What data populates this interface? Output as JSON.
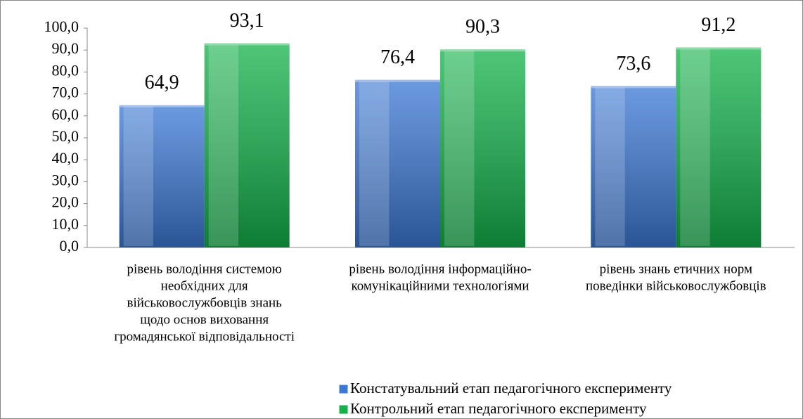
{
  "chart_data": {
    "type": "bar",
    "categories": [
      [
        "рівень володіння системою",
        "необхідних для",
        "військовослужбовців знань",
        "щодо основ виховання",
        "громадянської відповідальності"
      ],
      [
        "рівень володіння інформаційно-",
        "комунікаційними технологіями"
      ],
      [
        "рівень знань етичних норм",
        "поведінки військовослужбовців"
      ]
    ],
    "series": [
      {
        "name": "Констатувальний етап педагогічного експерименту",
        "color": "#3b78d4",
        "values": [
          64.9,
          76.4,
          73.6
        ],
        "value_labels": [
          "64,9",
          "76,4",
          "73,6"
        ]
      },
      {
        "name": "Контрольний етап педагогічного експерименту",
        "color": "#13b24a",
        "values": [
          93.1,
          90.3,
          91.2
        ],
        "value_labels": [
          "93,1",
          "90,3",
          "91,2"
        ]
      }
    ],
    "ylim": [
      0,
      100
    ],
    "yticks": [
      {
        "value": 0,
        "label": "0,0"
      },
      {
        "value": 10,
        "label": "10,0"
      },
      {
        "value": 20,
        "label": "20,0"
      },
      {
        "value": 30,
        "label": "30,0"
      },
      {
        "value": 40,
        "label": "40,0"
      },
      {
        "value": 50,
        "label": "50,0"
      },
      {
        "value": 60,
        "label": "60,0"
      },
      {
        "value": 70,
        "label": "70,0"
      },
      {
        "value": 80,
        "label": "80,0"
      },
      {
        "value": 90,
        "label": "90,0"
      },
      {
        "value": 100,
        "label": "100,0"
      }
    ],
    "grid": false,
    "legend": "bottom"
  }
}
